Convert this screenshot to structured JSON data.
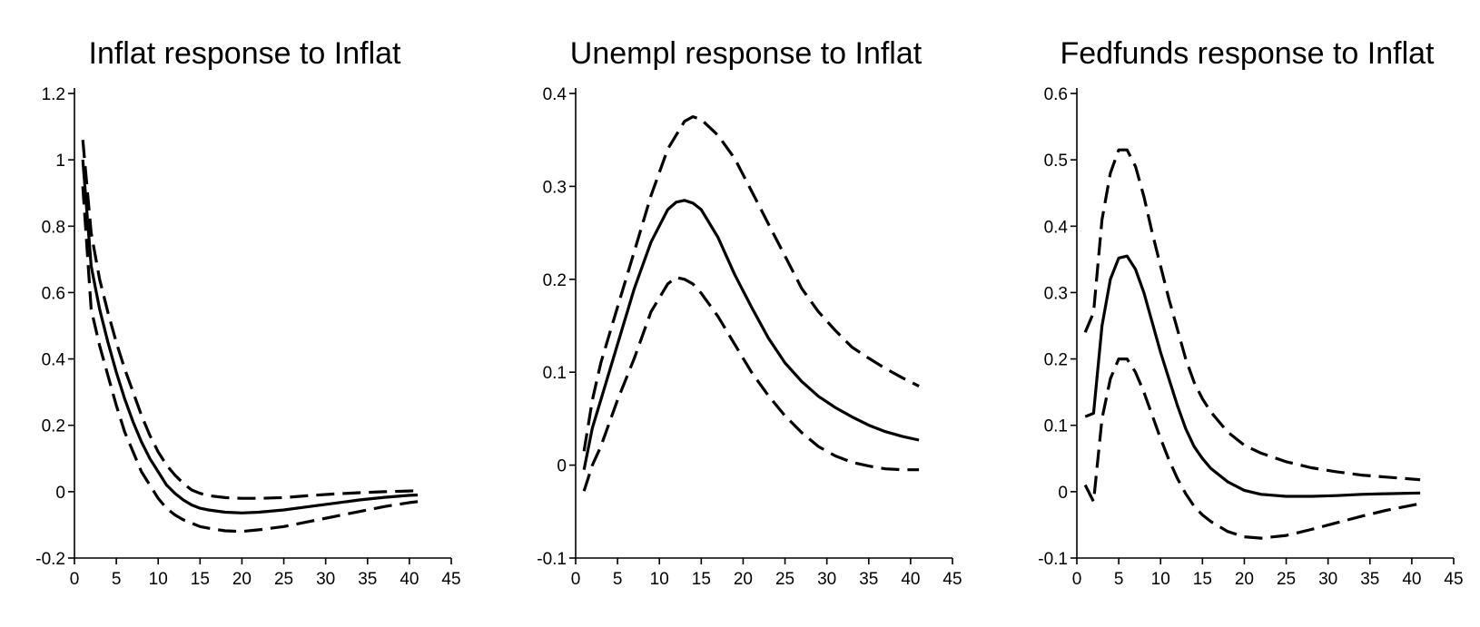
{
  "chart_data": [
    {
      "type": "line",
      "title": "Inflat response to Inflat",
      "xlabel": "",
      "ylabel": "",
      "xlim": [
        0,
        45
      ],
      "ylim": [
        -0.2,
        1.2
      ],
      "xticks": [
        0,
        5,
        10,
        15,
        20,
        25,
        30,
        35,
        40,
        45
      ],
      "yticks": [
        -0.2,
        0,
        0.2,
        0.4,
        0.6,
        0.8,
        1,
        1.2
      ],
      "xtick_labels": [
        "0",
        "5",
        "10",
        "15",
        "20",
        "25",
        "30",
        "35",
        "40",
        "45"
      ],
      "ytick_labels": [
        "-0.2",
        "0",
        "0.2",
        "0.4",
        "0.6",
        "0.8",
        "1",
        "1.2"
      ],
      "grid": false,
      "series": [
        {
          "style": "dashed",
          "x": [
            1,
            2,
            3,
            4,
            5,
            6,
            7,
            8,
            9,
            10,
            11,
            12,
            13,
            14,
            15,
            16,
            18,
            20,
            22,
            25,
            28,
            31,
            34,
            37,
            40,
            41
          ],
          "y": [
            1.06,
            0.78,
            0.64,
            0.54,
            0.45,
            0.37,
            0.3,
            0.23,
            0.17,
            0.12,
            0.08,
            0.05,
            0.025,
            0.005,
            -0.005,
            -0.012,
            -0.018,
            -0.02,
            -0.02,
            -0.018,
            -0.012,
            -0.007,
            -0.003,
            0.0,
            0.002,
            0.003
          ]
        },
        {
          "style": "solid",
          "x": [
            1,
            2,
            3,
            4,
            5,
            6,
            7,
            8,
            9,
            10,
            11,
            12,
            13,
            14,
            15,
            16,
            18,
            20,
            22,
            25,
            28,
            31,
            34,
            37,
            40,
            41
          ],
          "y": [
            1.0,
            0.68,
            0.55,
            0.45,
            0.36,
            0.28,
            0.21,
            0.15,
            0.1,
            0.06,
            0.02,
            -0.005,
            -0.025,
            -0.04,
            -0.05,
            -0.055,
            -0.062,
            -0.064,
            -0.062,
            -0.055,
            -0.045,
            -0.035,
            -0.025,
            -0.017,
            -0.011,
            -0.01
          ]
        },
        {
          "style": "dashed",
          "x": [
            1,
            2,
            3,
            4,
            5,
            6,
            7,
            8,
            9,
            10,
            11,
            12,
            13,
            14,
            15,
            16,
            18,
            20,
            22,
            25,
            28,
            31,
            34,
            37,
            40,
            41
          ],
          "y": [
            0.92,
            0.55,
            0.44,
            0.35,
            0.26,
            0.18,
            0.12,
            0.06,
            0.02,
            -0.02,
            -0.05,
            -0.07,
            -0.085,
            -0.095,
            -0.105,
            -0.11,
            -0.118,
            -0.12,
            -0.115,
            -0.105,
            -0.09,
            -0.075,
            -0.06,
            -0.045,
            -0.033,
            -0.03
          ]
        }
      ]
    },
    {
      "type": "line",
      "title": "Unempl response to Inflat",
      "xlabel": "",
      "ylabel": "",
      "xlim": [
        0,
        45
      ],
      "ylim": [
        -0.1,
        0.4
      ],
      "xticks": [
        0,
        5,
        10,
        15,
        20,
        25,
        30,
        35,
        40,
        45
      ],
      "yticks": [
        -0.1,
        0,
        0.1,
        0.2,
        0.3,
        0.4
      ],
      "xtick_labels": [
        "0",
        "5",
        "10",
        "15",
        "20",
        "25",
        "30",
        "35",
        "40",
        "45"
      ],
      "ytick_labels": [
        "-0.1",
        "0",
        "0.1",
        "0.2",
        "0.3",
        "0.4"
      ],
      "grid": false,
      "series": [
        {
          "style": "dashed",
          "x": [
            1,
            2,
            3,
            5,
            7,
            9,
            11,
            13,
            14,
            15,
            17,
            19,
            21,
            23,
            25,
            27,
            29,
            31,
            33,
            35,
            37,
            39,
            41
          ],
          "y": [
            0.015,
            0.07,
            0.11,
            0.17,
            0.23,
            0.29,
            0.34,
            0.37,
            0.375,
            0.372,
            0.355,
            0.33,
            0.295,
            0.26,
            0.225,
            0.19,
            0.165,
            0.145,
            0.127,
            0.115,
            0.104,
            0.094,
            0.085
          ]
        },
        {
          "style": "solid",
          "x": [
            1,
            2,
            3,
            5,
            7,
            9,
            11,
            12,
            13,
            14,
            15,
            17,
            19,
            21,
            23,
            25,
            27,
            29,
            31,
            33,
            35,
            37,
            39,
            41
          ],
          "y": [
            -0.005,
            0.04,
            0.07,
            0.13,
            0.19,
            0.24,
            0.275,
            0.283,
            0.285,
            0.282,
            0.275,
            0.245,
            0.205,
            0.17,
            0.137,
            0.11,
            0.09,
            0.074,
            0.062,
            0.052,
            0.043,
            0.036,
            0.031,
            0.027
          ]
        },
        {
          "style": "dashed",
          "x": [
            1,
            2,
            3,
            5,
            7,
            9,
            11,
            12,
            13,
            14,
            15,
            17,
            19,
            21,
            23,
            25,
            27,
            29,
            31,
            33,
            35,
            37,
            39,
            41
          ],
          "y": [
            -0.028,
            0.0,
            0.02,
            0.07,
            0.115,
            0.165,
            0.195,
            0.202,
            0.2,
            0.195,
            0.185,
            0.16,
            0.13,
            0.1,
            0.075,
            0.053,
            0.035,
            0.02,
            0.01,
            0.003,
            -0.001,
            -0.004,
            -0.005,
            -0.005
          ]
        }
      ]
    },
    {
      "type": "line",
      "title": "Fedfunds response to Inflat",
      "xlabel": "",
      "ylabel": "",
      "xlim": [
        0,
        45
      ],
      "ylim": [
        -0.1,
        0.6
      ],
      "xticks": [
        0,
        5,
        10,
        15,
        20,
        25,
        30,
        35,
        40,
        45
      ],
      "yticks": [
        -0.1,
        0,
        0.1,
        0.2,
        0.3,
        0.4,
        0.5,
        0.6
      ],
      "xtick_labels": [
        "0",
        "5",
        "10",
        "15",
        "20",
        "25",
        "30",
        "35",
        "40",
        "45"
      ],
      "ytick_labels": [
        "-0.1",
        "0",
        "0.1",
        "0.2",
        "0.3",
        "0.4",
        "0.5",
        "0.6"
      ],
      "grid": false,
      "series": [
        {
          "style": "dashed",
          "x": [
            1,
            2,
            3,
            4,
            5,
            6,
            7,
            8,
            9,
            10,
            11,
            12,
            13,
            14,
            15,
            16,
            18,
            20,
            22,
            25,
            28,
            31,
            34,
            37,
            41
          ],
          "y": [
            0.24,
            0.27,
            0.41,
            0.48,
            0.515,
            0.515,
            0.49,
            0.445,
            0.39,
            0.34,
            0.29,
            0.245,
            0.2,
            0.165,
            0.14,
            0.12,
            0.09,
            0.07,
            0.058,
            0.045,
            0.036,
            0.03,
            0.025,
            0.022,
            0.018
          ]
        },
        {
          "style": "solid",
          "x": [
            1,
            2,
            3,
            4,
            5,
            6,
            7,
            8,
            9,
            10,
            11,
            12,
            13,
            14,
            15,
            16,
            18,
            20,
            22,
            25,
            28,
            31,
            34,
            37,
            41
          ],
          "y": [
            0.113,
            0.118,
            0.25,
            0.32,
            0.352,
            0.355,
            0.335,
            0.3,
            0.255,
            0.21,
            0.17,
            0.13,
            0.095,
            0.068,
            0.05,
            0.035,
            0.015,
            0.002,
            -0.004,
            -0.007,
            -0.007,
            -0.006,
            -0.004,
            -0.003,
            -0.002
          ]
        },
        {
          "style": "dashed",
          "x": [
            1,
            2,
            3,
            4,
            5,
            6,
            7,
            8,
            9,
            10,
            11,
            12,
            13,
            14,
            15,
            16,
            18,
            20,
            22,
            25,
            28,
            31,
            34,
            37,
            41
          ],
          "y": [
            0.01,
            -0.015,
            0.11,
            0.17,
            0.2,
            0.2,
            0.18,
            0.15,
            0.115,
            0.08,
            0.048,
            0.02,
            -0.003,
            -0.022,
            -0.035,
            -0.045,
            -0.06,
            -0.068,
            -0.07,
            -0.066,
            -0.057,
            -0.047,
            -0.037,
            -0.028,
            -0.018
          ]
        }
      ]
    }
  ]
}
